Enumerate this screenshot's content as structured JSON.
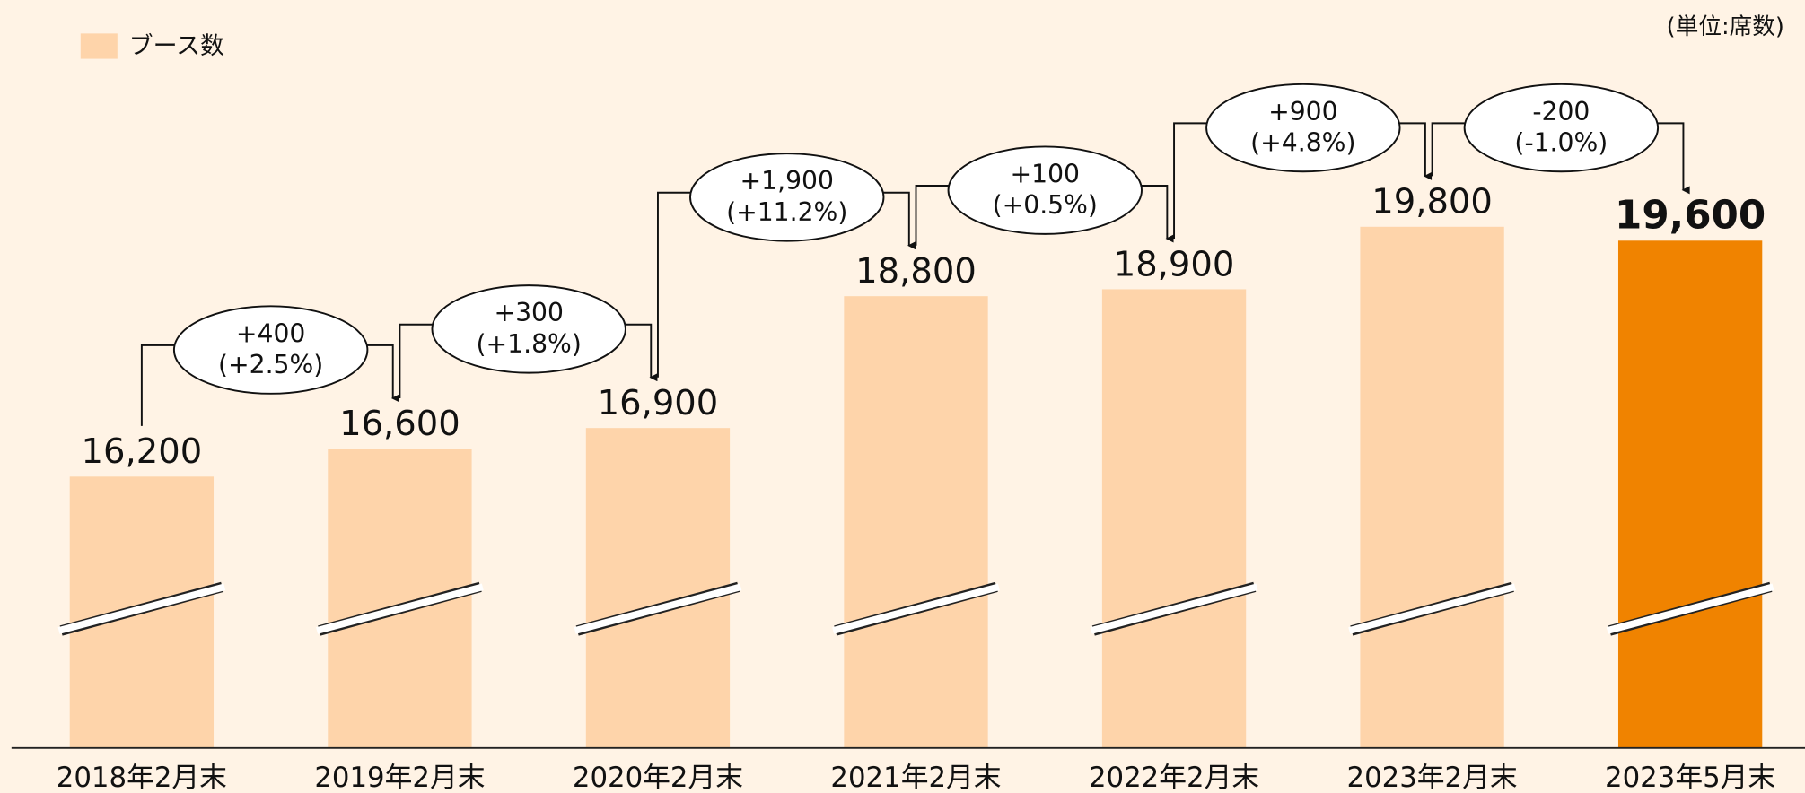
{
  "chart_data": {
    "type": "bar",
    "unit_label": "(単位:席数)",
    "categories": [
      "2018年2月末",
      "2019年2月末",
      "2020年2月末",
      "2021年2月末",
      "2022年2月末",
      "2023年2月末",
      "2023年5月末"
    ],
    "series": [
      {
        "name": "ブース数",
        "color": "#fed4aa",
        "values": [
          16200,
          16600,
          16900,
          18800,
          18900,
          19800,
          19600
        ],
        "value_labels": [
          "16,200",
          "16,600",
          "16,900",
          "18,800",
          "18,900",
          "19,800",
          "19,600"
        ],
        "colors": [
          "#fed4aa",
          "#fed4aa",
          "#fed4aa",
          "#fed4aa",
          "#fed4aa",
          "#fed4aa",
          "#f08300"
        ]
      }
    ],
    "ylim": [
      12290,
      21000
    ],
    "legend": "top-left",
    "annotations": [
      {
        "change": "+400",
        "ratio": "(+2.5%)"
      },
      {
        "change": "+300",
        "ratio": "(+1.8%)"
      },
      {
        "change": "+1,900",
        "ratio": "(+11.2%)"
      },
      {
        "change": "+100",
        "ratio": "(+0.5%)"
      },
      {
        "change": "+900",
        "ratio": "(+4.8%)"
      },
      {
        "change": "-200",
        "ratio": "(-1.0%)"
      }
    ]
  }
}
